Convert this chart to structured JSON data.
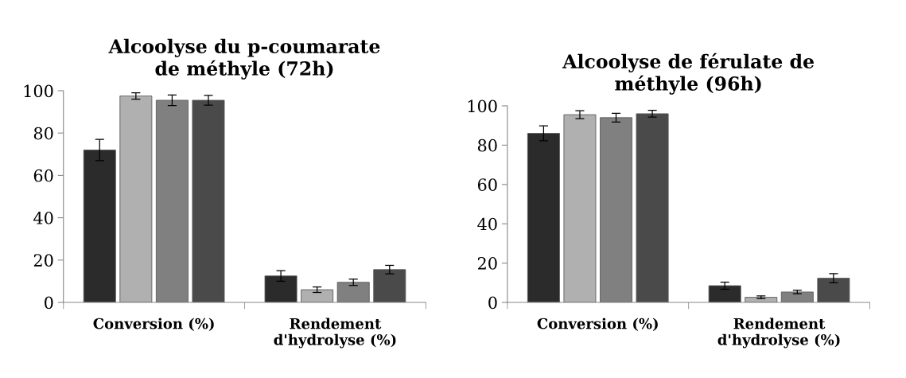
{
  "chart_data": [
    {
      "type": "bar",
      "title": "Alcoolyse du p-coumarate\nde méthyle (72h)",
      "categories": [
        "Conversion (%)",
        "Rendement\nd'hydrolyse (%)"
      ],
      "ylim": [
        0,
        100
      ],
      "yticks": [
        0,
        20,
        40,
        60,
        80,
        100
      ],
      "grid": false,
      "legend": false,
      "series": [
        {
          "color": "#2b2b2b",
          "values": [
            72,
            12.5
          ],
          "errors": [
            5,
            2.5
          ]
        },
        {
          "color": "#b0b0b0",
          "values": [
            97.5,
            6
          ],
          "errors": [
            1.5,
            1.3
          ]
        },
        {
          "color": "#808080",
          "values": [
            95.5,
            9.5
          ],
          "errors": [
            2.5,
            1.5
          ]
        },
        {
          "color": "#4a4a4a",
          "values": [
            95.5,
            15.5
          ],
          "errors": [
            2.3,
            2
          ]
        }
      ]
    },
    {
      "type": "bar",
      "title": "Alcoolyse de férulate de\nméthyle (96h)",
      "categories": [
        "Conversion (%)",
        "Rendement\nd'hydrolyse (%)"
      ],
      "ylim": [
        0,
        100
      ],
      "yticks": [
        0,
        20,
        40,
        60,
        80,
        100
      ],
      "grid": false,
      "legend": false,
      "series": [
        {
          "color": "#2b2b2b",
          "values": [
            86,
            8.5
          ],
          "errors": [
            3.8,
            1.8
          ]
        },
        {
          "color": "#b0b0b0",
          "values": [
            95.5,
            2.6
          ],
          "errors": [
            2,
            0.7
          ]
        },
        {
          "color": "#808080",
          "values": [
            94,
            5.3
          ],
          "errors": [
            2.2,
            0.9
          ]
        },
        {
          "color": "#4a4a4a",
          "values": [
            96,
            12.3
          ],
          "errors": [
            1.7,
            2.3
          ]
        }
      ]
    }
  ]
}
